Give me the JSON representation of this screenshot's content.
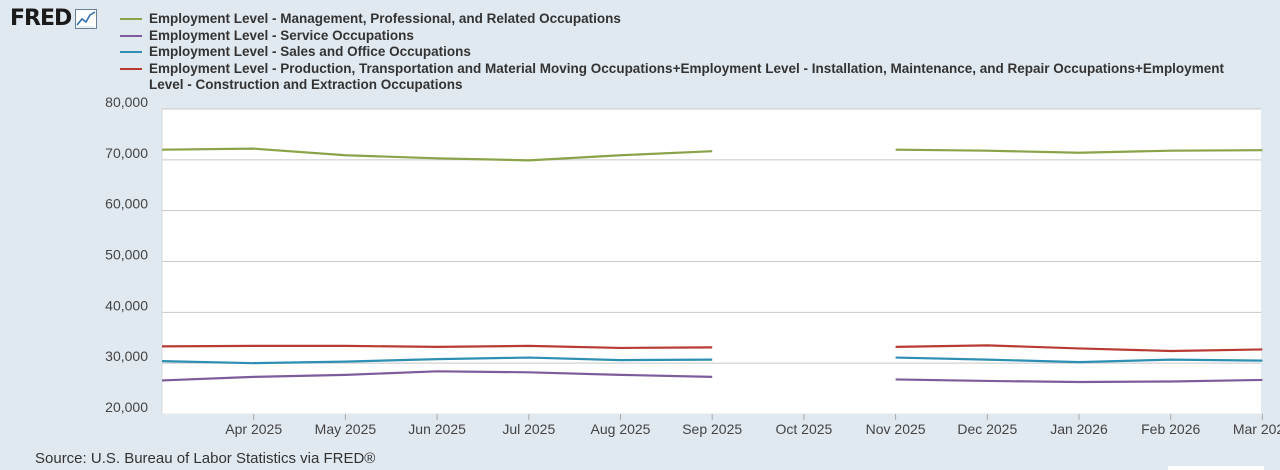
{
  "logo": {
    "text": "FRED",
    "icon": "trend-chart-icon"
  },
  "chart_data": {
    "type": "line",
    "title": "",
    "xlabel": "",
    "ylabel": "",
    "ylim": [
      20000,
      80000
    ],
    "yticks": [
      20000,
      30000,
      40000,
      50000,
      60000,
      70000,
      80000
    ],
    "ytick_labels": [
      "20,000",
      "30,000",
      "40,000",
      "50,000",
      "60,000",
      "70,000",
      "80,000"
    ],
    "x": [
      "Mar 2025",
      "Apr 2025",
      "May 2025",
      "Jun 2025",
      "Jul 2025",
      "Aug 2025",
      "Sep 2025",
      "Oct 2025",
      "Nov 2025",
      "Dec 2025",
      "Jan 2026",
      "Feb 2026",
      "Mar 2026"
    ],
    "xtick_labels": [
      "Apr 2025",
      "May 2025",
      "Jun 2025",
      "Jul 2025",
      "Aug 2025",
      "Sep 2025",
      "Oct 2025",
      "Nov 2025",
      "Dec 2025",
      "Jan 2026",
      "Feb 2026",
      "Mar 2026"
    ],
    "grid": true,
    "legend_position": "top",
    "series": [
      {
        "name": "Employment Level - Management, Professional, and Related Occupations",
        "color": "#8aa348",
        "values": [
          72000,
          72200,
          70900,
          70300,
          69900,
          70900,
          71700,
          null,
          72000,
          71800,
          71400,
          71800,
          71900
        ]
      },
      {
        "name": "Employment Level - Service Occupations",
        "color": "#7e5c9c",
        "values": [
          26600,
          27300,
          27700,
          28400,
          28200,
          27700,
          27300,
          null,
          26800,
          26500,
          26300,
          26400,
          26700
        ]
      },
      {
        "name": "Employment Level - Sales and Office Occupations",
        "color": "#2d8fb3",
        "values": [
          30400,
          30000,
          30300,
          30800,
          31100,
          30600,
          30700,
          null,
          31100,
          30700,
          30200,
          30700,
          30500
        ]
      },
      {
        "name": "Employment Level - Production, Transportation and Material Moving Occupations+Employment Level - Installation, Maintenance, and Repair Occupations+Employment Level - Construction and Extraction Occupations",
        "color": "#b83a35",
        "values": [
          33300,
          33400,
          33400,
          33200,
          33400,
          33000,
          33100,
          null,
          33200,
          33500,
          32900,
          32400,
          32700
        ]
      }
    ]
  },
  "source": "Source: U.S. Bureau of Labor Statistics via FRED®",
  "colors": {
    "background": "#e1e9f0",
    "plot_background": "#ffffff",
    "grid": "#c8c8c8"
  }
}
